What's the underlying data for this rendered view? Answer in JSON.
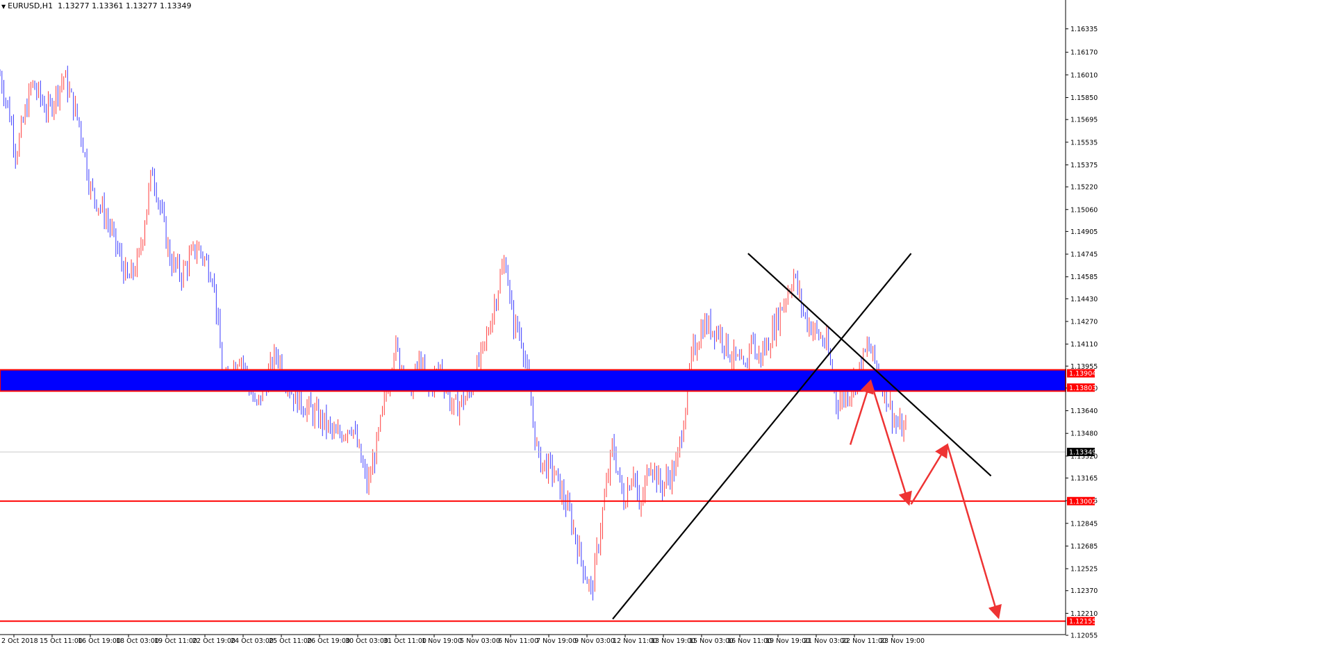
{
  "header": {
    "symbol": "EURUSD,H1",
    "ohlc": "1.13277 1.13361 1.13277 1.13349"
  },
  "colors": {
    "bull": "#ff3b3b",
    "bear": "#3b3bff",
    "zone_fill": "#0000ff",
    "level_line": "#ff0000",
    "trendline": "#000000",
    "arrow": "#ee3333",
    "price_label_bg_red": "#ff0000",
    "price_label_bg_current": "#000000"
  },
  "chart_data": {
    "type": "candlestick",
    "instrument": "EURUSD",
    "timeframe": "H1",
    "ylim": [
      1.1206,
      1.1647
    ],
    "y_ticks": [
      "1.16335",
      "1.16170",
      "1.16010",
      "1.15850",
      "1.15695",
      "1.15535",
      "1.15375",
      "1.15220",
      "1.15060",
      "1.14905",
      "1.14745",
      "1.14585",
      "1.14430",
      "1.14270",
      "1.14110",
      "1.13955",
      "1.13800",
      "1.13640",
      "1.13480",
      "1.13320",
      "1.13165",
      "1.13005",
      "1.12845",
      "1.12685",
      "1.12525",
      "1.12370",
      "1.12210",
      "1.12055"
    ],
    "x_ticks": [
      "2 Oct 2018",
      "15 Oct 11:00",
      "16 Oct 19:00",
      "18 Oct 03:00",
      "19 Oct 11:00",
      "22 Oct 19:00",
      "24 Oct 03:00",
      "25 Oct 11:00",
      "26 Oct 19:00",
      "30 Oct 03:00",
      "31 Oct 11:00",
      "1 Nov 19:00",
      "5 Nov 03:00",
      "6 Nov 11:00",
      "7 Nov 19:00",
      "9 Nov 03:00",
      "12 Nov 11:00",
      "13 Nov 19:00",
      "15 Nov 03:00",
      "16 Nov 11:00",
      "19 Nov 19:00",
      "21 Nov 03:00",
      "22 Nov 11:00",
      "23 Nov 19:00"
    ],
    "price_path": [
      [
        0,
        1.1601
      ],
      [
        0.01,
        1.157
      ],
      [
        0.015,
        1.1545
      ],
      [
        0.03,
        1.1595
      ],
      [
        0.045,
        1.1575
      ],
      [
        0.06,
        1.16
      ],
      [
        0.075,
        1.1565
      ],
      [
        0.085,
        1.152
      ],
      [
        0.1,
        1.15
      ],
      [
        0.12,
        1.1455
      ],
      [
        0.13,
        1.147
      ],
      [
        0.143,
        1.1535
      ],
      [
        0.16,
        1.147
      ],
      [
        0.17,
        1.146
      ],
      [
        0.185,
        1.148
      ],
      [
        0.2,
        1.146
      ],
      [
        0.21,
        1.138
      ],
      [
        0.225,
        1.1405
      ],
      [
        0.24,
        1.1365
      ],
      [
        0.26,
        1.1405
      ],
      [
        0.275,
        1.1375
      ],
      [
        0.29,
        1.1365
      ],
      [
        0.305,
        1.1355
      ],
      [
        0.315,
        1.1345
      ],
      [
        0.33,
        1.1355
      ],
      [
        0.345,
        1.131
      ],
      [
        0.355,
        1.1345
      ],
      [
        0.37,
        1.141
      ],
      [
        0.385,
        1.138
      ],
      [
        0.395,
        1.14
      ],
      [
        0.4,
        1.1375
      ],
      [
        0.413,
        1.1395
      ],
      [
        0.425,
        1.1365
      ],
      [
        0.44,
        1.1375
      ],
      [
        0.455,
        1.141
      ],
      [
        0.47,
        1.146
      ],
      [
        0.475,
        1.147
      ],
      [
        0.48,
        1.143
      ],
      [
        0.49,
        1.1415
      ],
      [
        0.505,
        1.133
      ],
      [
        0.52,
        1.132
      ],
      [
        0.535,
        1.129
      ],
      [
        0.545,
        1.126
      ],
      [
        0.555,
        1.1235
      ],
      [
        0.565,
        1.129
      ],
      [
        0.575,
        1.134
      ],
      [
        0.585,
        1.13
      ],
      [
        0.595,
        1.1325
      ],
      [
        0.6,
        1.129
      ],
      [
        0.61,
        1.133
      ],
      [
        0.62,
        1.131
      ],
      [
        0.635,
        1.1325
      ],
      [
        0.65,
        1.1405
      ],
      [
        0.66,
        1.1425
      ],
      [
        0.675,
        1.142
      ],
      [
        0.685,
        1.1405
      ],
      [
        0.7,
        1.139
      ],
      [
        0.705,
        1.142
      ],
      [
        0.71,
        1.14
      ],
      [
        0.72,
        1.141
      ],
      [
        0.745,
        1.146
      ],
      [
        0.755,
        1.143
      ],
      [
        0.765,
        1.142
      ],
      [
        0.776,
        1.141
      ],
      [
        0.785,
        1.137
      ],
      [
        0.795,
        1.1375
      ],
      [
        0.805,
        1.139
      ],
      [
        0.815,
        1.141
      ],
      [
        0.82,
        1.14
      ],
      [
        0.83,
        1.138
      ],
      [
        0.84,
        1.1355
      ],
      [
        0.85,
        1.1349
      ]
    ],
    "horizontal_levels": [
      {
        "label": "1.13002",
        "price": 1.13002
      },
      {
        "label": "1.12155",
        "price": 1.12155
      }
    ],
    "zone": {
      "upper_label": "1.13904",
      "upper": 1.13904,
      "lower_label": "1.13803",
      "lower": 1.13803
    },
    "current_price": {
      "label": "1.13349",
      "price": 1.13349
    },
    "trendlines": [
      {
        "from": {
          "t": 0.575,
          "price": 1.1217
        },
        "to": {
          "t": 0.855,
          "price": 1.1475
        }
      },
      {
        "from": {
          "t": 0.702,
          "price": 1.1475
        },
        "to": {
          "t": 0.93,
          "price": 1.1318
        }
      }
    ],
    "projection_arrows": [
      {
        "from": {
          "t": 0.798,
          "price": 1.134
        },
        "to": {
          "t": 0.817,
          "price": 1.1385
        }
      },
      {
        "from": {
          "t": 0.817,
          "price": 1.1385
        },
        "to": {
          "t": 0.853,
          "price": 1.1298
        }
      },
      {
        "from": {
          "t": 0.855,
          "price": 1.1298
        },
        "to": {
          "t": 0.889,
          "price": 1.134
        }
      },
      {
        "from": {
          "t": 0.889,
          "price": 1.134
        },
        "to": {
          "t": 0.937,
          "price": 1.1218
        }
      }
    ]
  }
}
